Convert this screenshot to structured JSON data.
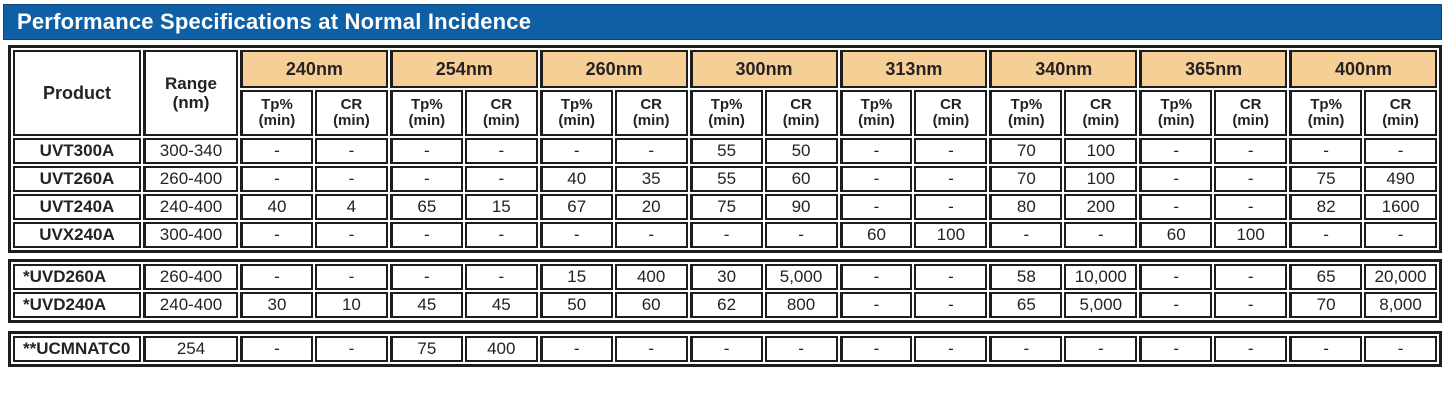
{
  "title": "Performance Specifications at Normal Incidence",
  "colors": {
    "title_bg": "#0e5fa4",
    "title_text": "#ffffff",
    "wavelength_header_bg": "#f6cf97",
    "border": "#1d1d1e",
    "text": "#262223"
  },
  "header": {
    "product_label": "Product",
    "range_line1": "Range",
    "range_line2": "(nm)",
    "wavelengths": [
      "240nm",
      "254nm",
      "260nm",
      "300nm",
      "313nm",
      "340nm",
      "365nm",
      "400nm"
    ],
    "sub_tp": "Tp%",
    "sub_cr": "CR",
    "sub_min": "(min)"
  },
  "groups": [
    {
      "rows": [
        {
          "product": "UVT300A",
          "range": "300-340",
          "values": [
            "-",
            "-",
            "-",
            "-",
            "-",
            "-",
            "55",
            "50",
            "-",
            "-",
            "70",
            "100",
            "-",
            "-",
            "-",
            "-"
          ]
        },
        {
          "product": "UVT260A",
          "range": "260-400",
          "values": [
            "-",
            "-",
            "-",
            "-",
            "40",
            "35",
            "55",
            "60",
            "-",
            "-",
            "70",
            "100",
            "-",
            "-",
            "75",
            "490"
          ]
        },
        {
          "product": "UVT240A",
          "range": "240-400",
          "values": [
            "40",
            "4",
            "65",
            "15",
            "67",
            "20",
            "75",
            "90",
            "-",
            "-",
            "80",
            "200",
            "-",
            "-",
            "82",
            "1600"
          ]
        },
        {
          "product": "UVX240A",
          "range": "300-400",
          "values": [
            "-",
            "-",
            "-",
            "-",
            "-",
            "-",
            "-",
            "-",
            "60",
            "100",
            "-",
            "-",
            "60",
            "100",
            "-",
            "-"
          ]
        }
      ]
    },
    {
      "rows": [
        {
          "product": "*UVD260A",
          "range": "260-400",
          "values": [
            "-",
            "-",
            "-",
            "-",
            "15",
            "400",
            "30",
            "5,000",
            "-",
            "-",
            "58",
            "10,000",
            "-",
            "-",
            "65",
            "20,000"
          ]
        },
        {
          "product": "*UVD240A",
          "range": "240-400",
          "values": [
            "30",
            "10",
            "45",
            "45",
            "50",
            "60",
            "62",
            "800",
            "-",
            "-",
            "65",
            "5,000",
            "-",
            "-",
            "70",
            "8,000"
          ]
        }
      ]
    },
    {
      "rows": [
        {
          "product": "**UCMNATC0",
          "range": "254",
          "values": [
            "-",
            "-",
            "75",
            "400",
            "-",
            "-",
            "-",
            "-",
            "-",
            "-",
            "-",
            "-",
            "-",
            "-",
            "-",
            "-"
          ]
        }
      ]
    }
  ]
}
